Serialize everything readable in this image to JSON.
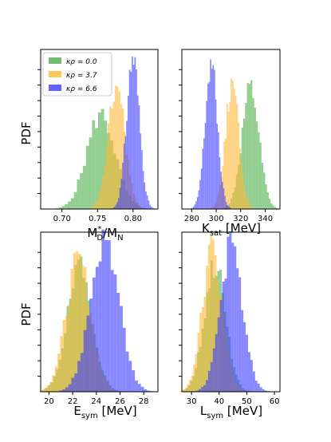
{
  "figure": {
    "ylabel_left": "PDF",
    "legend": [
      {
        "label": "κρ = 0.0",
        "color": "#4daf4a"
      },
      {
        "label": "κρ = 3.7",
        "color": "#ffb833"
      },
      {
        "label": "κρ = 6.6",
        "color": "#3b3bff"
      }
    ]
  },
  "chart_data": [
    {
      "type": "histogram",
      "panel": "top-left",
      "xlabel": "M*D/MN",
      "xlim": [
        0.67,
        0.835
      ],
      "xticks": [
        0.7,
        0.75,
        0.8
      ],
      "xticklabels": [
        "0.70",
        "0.75",
        "0.80"
      ],
      "ylim": [
        0,
        1.05
      ],
      "ylabel": "PDF",
      "grid": false,
      "series": [
        {
          "name": "κρ = 0.0",
          "color": "#4daf4a",
          "mean": 0.755,
          "sd": 0.02,
          "peak": 0.62
        },
        {
          "name": "κρ = 3.7",
          "color": "#ffb833",
          "mean": 0.777,
          "sd": 0.012,
          "peak": 0.8
        },
        {
          "name": "κρ = 6.6",
          "color": "#3b3bff",
          "mean": 0.8,
          "sd": 0.009,
          "peak": 1.0
        }
      ]
    },
    {
      "type": "histogram",
      "panel": "top-right",
      "xlabel": "Ksat [MeV]",
      "xlim": [
        272,
        352
      ],
      "xticks": [
        280,
        300,
        320,
        340
      ],
      "xticklabels": [
        "280",
        "300",
        "320",
        "340"
      ],
      "ylim": [
        0,
        1.05
      ],
      "grid": false,
      "series": [
        {
          "name": "κρ = 0.0",
          "color": "#4daf4a",
          "mean": 328,
          "sd": 7.0,
          "peak": 0.78
        },
        {
          "name": "κρ = 3.7",
          "color": "#ffb833",
          "mean": 313,
          "sd": 5.5,
          "peak": 0.82
        },
        {
          "name": "κρ = 6.6",
          "color": "#3b3bff",
          "mean": 296,
          "sd": 5.0,
          "peak": 0.95
        }
      ]
    },
    {
      "type": "histogram",
      "panel": "bottom-left",
      "xlabel": "Esym [MeV]",
      "xlim": [
        19.3,
        29.2
      ],
      "xticks": [
        20,
        22,
        24,
        26,
        28
      ],
      "xticklabels": [
        "20",
        "22",
        "24",
        "26",
        "28"
      ],
      "ylim": [
        0,
        1.05
      ],
      "ylabel": "PDF",
      "grid": false,
      "series": [
        {
          "name": "κρ = 0.0",
          "color": "#4daf4a",
          "mean": 22.6,
          "sd": 1.05,
          "peak": 0.8
        },
        {
          "name": "κρ = 3.7",
          "color": "#ffb833",
          "mean": 22.5,
          "sd": 1.05,
          "peak": 0.86
        },
        {
          "name": "κρ = 6.6",
          "color": "#3b3bff",
          "mean": 24.7,
          "sd": 1.2,
          "peak": 1.0
        }
      ]
    },
    {
      "type": "histogram",
      "panel": "bottom-right",
      "xlabel": "Lsym [MeV]",
      "xlim": [
        26.5,
        62
      ],
      "xticks": [
        30,
        40,
        50,
        60
      ],
      "xticklabels": [
        "30",
        "40",
        "50",
        "60"
      ],
      "ylim": [
        0,
        1.05
      ],
      "grid": false,
      "series": [
        {
          "name": "κρ = 0.0",
          "color": "#4daf4a",
          "mean": 38.5,
          "sd": 3.8,
          "peak": 0.85
        },
        {
          "name": "κρ = 3.7",
          "color": "#ffb833",
          "mean": 37.5,
          "sd": 3.6,
          "peak": 0.93
        },
        {
          "name": "κρ = 6.6",
          "color": "#3b3bff",
          "mean": 44.5,
          "sd": 4.0,
          "peak": 0.96
        }
      ]
    }
  ]
}
